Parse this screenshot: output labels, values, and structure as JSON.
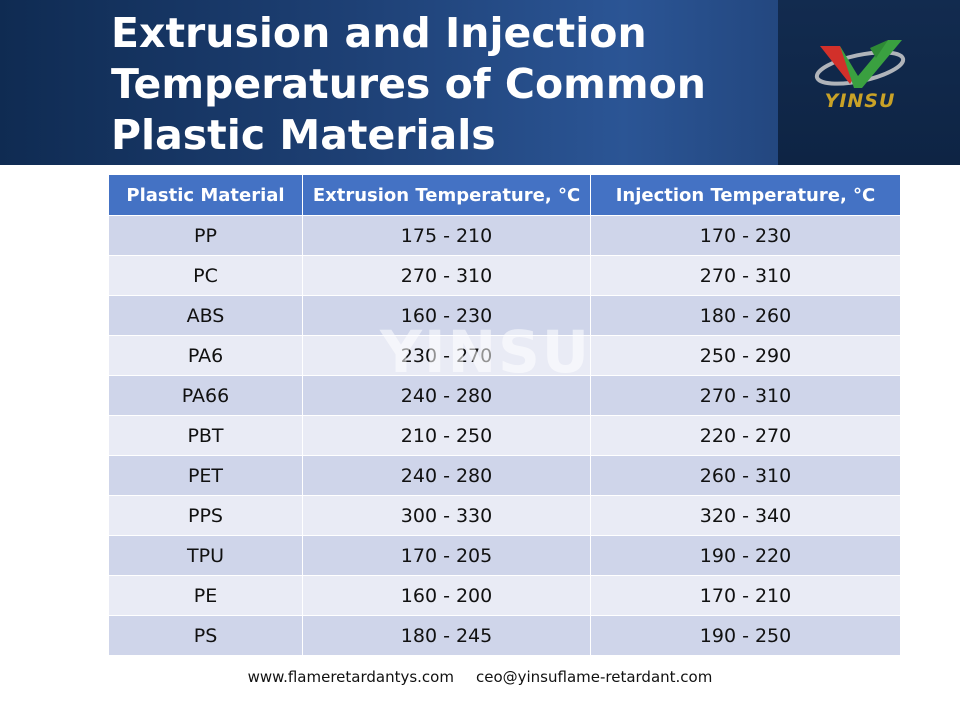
{
  "header": {
    "title_lines": [
      "Extrusion and Injection",
      "Temperatures of Common",
      "Plastic Materials"
    ],
    "logo_text": "YINSU",
    "colors": {
      "header_dark": "#0f2b52",
      "header_mid": "#2b5595",
      "logo_gold": "#c9a227",
      "logo_green": "#3aa040",
      "logo_red": "#d2302a",
      "logo_silver": "#b0b4ba"
    }
  },
  "watermark": "YINSU",
  "table": {
    "headers": [
      "Plastic Material",
      "Extrusion Temperature, °C",
      "Injection Temperature, °C"
    ],
    "rows": [
      [
        "PP",
        "175 - 210",
        "170 - 230"
      ],
      [
        "PC",
        "270 - 310",
        "270 - 310"
      ],
      [
        "ABS",
        "160 - 230",
        "180 - 260"
      ],
      [
        "PA6",
        "230 - 270",
        "250 - 290"
      ],
      [
        "PA66",
        "240 - 280",
        "270 - 310"
      ],
      [
        "PBT",
        "210 - 250",
        "220 - 270"
      ],
      [
        "PET",
        "240 - 280",
        "260 - 310"
      ],
      [
        "PPS",
        "300 - 330",
        "320 - 340"
      ],
      [
        "TPU",
        "170 - 205",
        "190 - 220"
      ],
      [
        "PE",
        "160 - 200",
        "170 - 210"
      ],
      [
        "PS",
        "180 - 245",
        "190 - 250"
      ]
    ],
    "colors": {
      "header_bg": "#4472c4",
      "row_odd": "#cfd5ea",
      "row_even": "#e9ebf5"
    }
  },
  "footer": {
    "website": "www.flameretardantys.com",
    "email": "ceo@yinsuflame-retardant.com"
  }
}
